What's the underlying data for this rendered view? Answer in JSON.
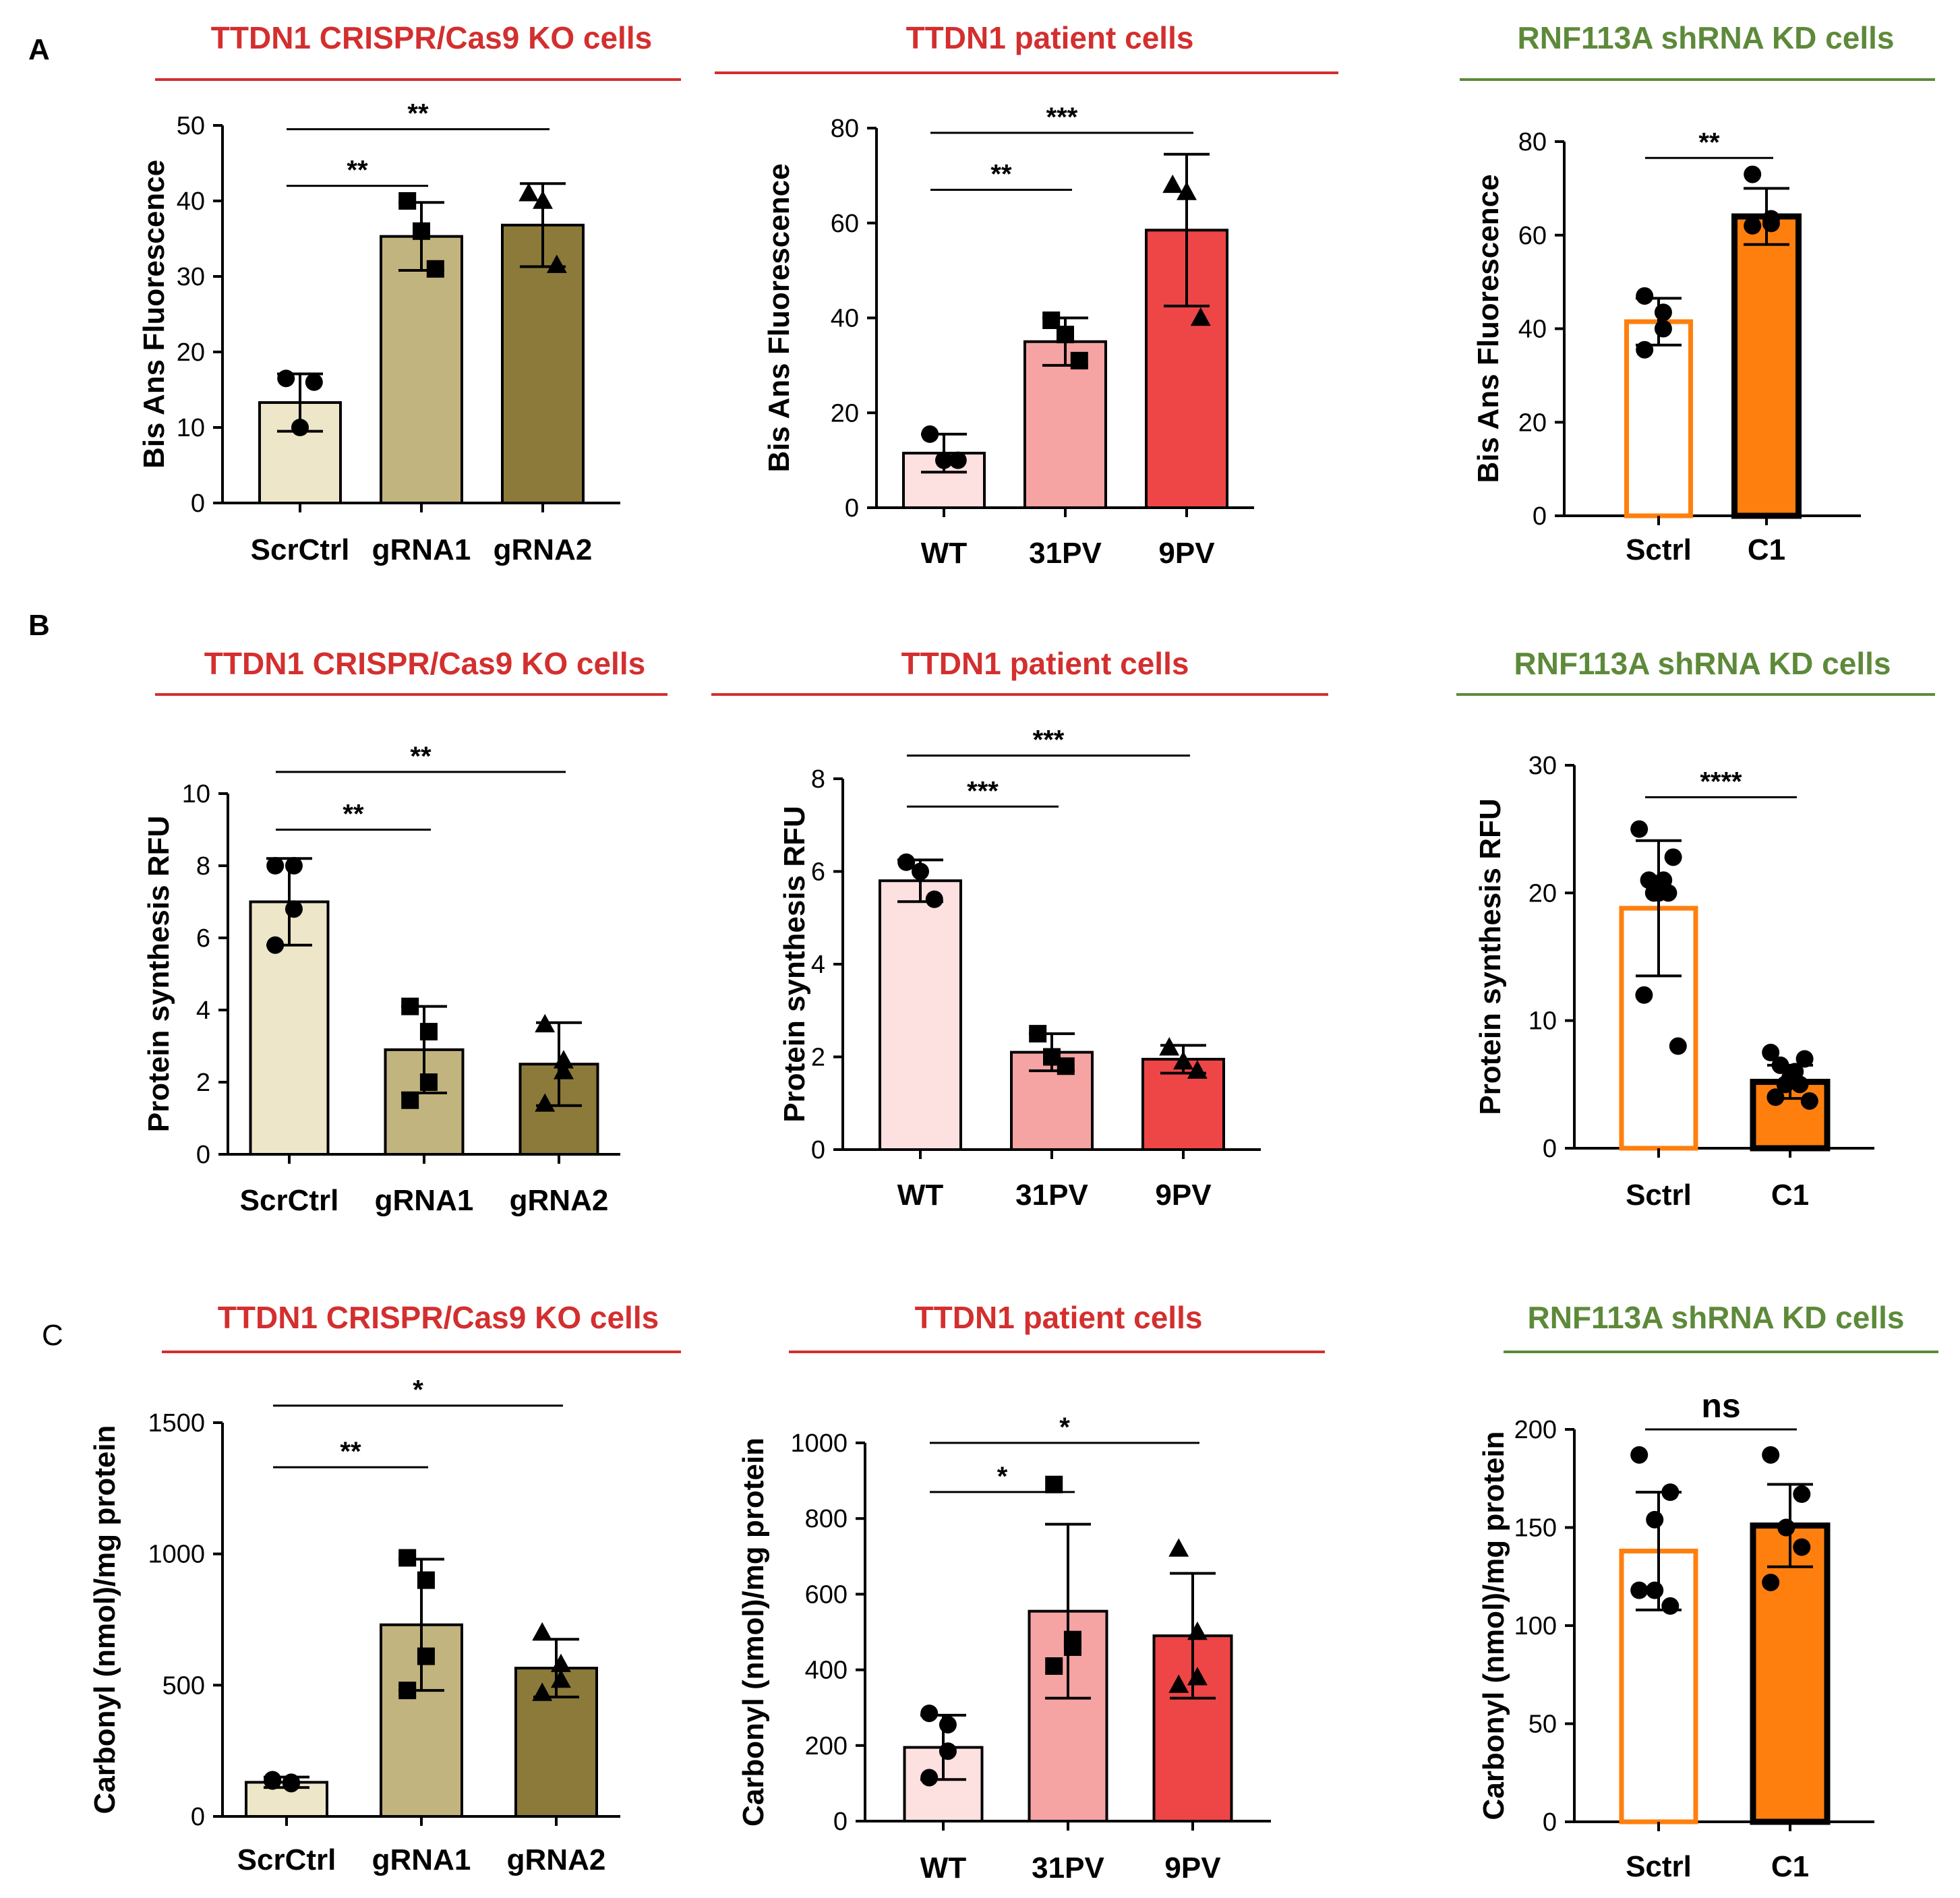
{
  "figure": {
    "panel_labels": [
      "A",
      "B",
      "C"
    ],
    "colors": {
      "title_red": "#d32f2f",
      "title_green": "#5d8a3a",
      "beige_light": "#ede6c8",
      "beige_mid": "#c2b47e",
      "olive": "#8b7a3a",
      "pink_light": "#fde0e0",
      "pink_mid": "#f6a3a3",
      "red": "#ee4646",
      "orange": "#ff7f0e",
      "black": "#000000",
      "white": "#ffffff"
    }
  },
  "chart_data": [
    {
      "id": "A1",
      "type": "bar",
      "panel": "A",
      "title": "TTDN1 CRISPR/Cas9 KO cells",
      "title_color": "red",
      "ylabel": "Bis Ans Fluorescence",
      "ylim": [
        0,
        50
      ],
      "yticks": [
        "0",
        "10",
        "20",
        "30",
        "40",
        "50"
      ],
      "categories": [
        "ScrCtrl",
        "gRNA1",
        "gRNA2"
      ],
      "values": [
        13.3,
        35.3,
        36.8
      ],
      "errors": [
        3.8,
        4.5,
        5.5
      ],
      "fills": [
        "beige_light",
        "beige_mid",
        "olive"
      ],
      "bar_stroke": "black",
      "markers": [
        "circle",
        "square",
        "triangle"
      ],
      "points": [
        [
          16.5,
          10,
          16
        ],
        [
          40,
          36,
          31
        ],
        [
          41,
          40,
          31.5
        ]
      ],
      "comparisons": [
        {
          "from": 0,
          "to": 1,
          "y": 42,
          "label": "**"
        },
        {
          "from": 0,
          "to": 2,
          "y": 49.5,
          "label": "**"
        }
      ]
    },
    {
      "id": "A2",
      "type": "bar",
      "panel": "A",
      "title": "TTDN1 patient cells",
      "title_color": "red",
      "ylabel": "Bis Ans Fluorescence",
      "ylim": [
        0,
        80
      ],
      "yticks": [
        "0",
        "20",
        "40",
        "60",
        "80"
      ],
      "categories": [
        "WT",
        "31PV",
        "9PV"
      ],
      "values": [
        11.5,
        35,
        58.5
      ],
      "errors": [
        4,
        5,
        16
      ],
      "fills": [
        "pink_light",
        "pink_mid",
        "red"
      ],
      "bar_stroke": "black",
      "markers": [
        "circle",
        "square",
        "triangle"
      ],
      "points": [
        [
          15.5,
          10,
          10
        ],
        [
          39.5,
          36.5,
          31
        ],
        [
          68,
          66.5,
          40
        ]
      ],
      "comparisons": [
        {
          "from": 0,
          "to": 1,
          "y": 67,
          "label": "**"
        },
        {
          "from": 0,
          "to": 2,
          "y": 79,
          "label": "***"
        }
      ]
    },
    {
      "id": "A3",
      "type": "bar",
      "panel": "A",
      "title": "RNF113A shRNA KD  cells",
      "title_color": "green",
      "ylabel": "Bis Ans Fluorescence",
      "ylim": [
        0,
        80
      ],
      "yticks": [
        "0",
        "20",
        "40",
        "60",
        "80"
      ],
      "categories": [
        "Sctrl",
        "C1"
      ],
      "values": [
        41.5,
        64
      ],
      "errors": [
        5,
        6
      ],
      "fills": [
        "white",
        "orange"
      ],
      "bar_stroke": "orange_black",
      "markers": [
        "circle",
        "circle"
      ],
      "points": [
        [
          47,
          43.5,
          40,
          35.5
        ],
        [
          73,
          63.5,
          62.5,
          62
        ]
      ],
      "comparisons": [
        {
          "from": 0,
          "to": 1,
          "y": 76.5,
          "label": "**"
        }
      ]
    },
    {
      "id": "B1",
      "type": "bar",
      "panel": "B",
      "title": "TTDN1 CRISPR/Cas9 KO cells",
      "title_color": "red",
      "ylabel": "Protein synthesis RFU",
      "ylim": [
        0,
        10
      ],
      "yticks": [
        "0",
        "2",
        "4",
        "6",
        "8",
        "10"
      ],
      "categories": [
        "ScrCtrl",
        "gRNA1",
        "gRNA2"
      ],
      "values": [
        7,
        2.9,
        2.5
      ],
      "errors": [
        1.2,
        1.2,
        1.15
      ],
      "fills": [
        "beige_light",
        "beige_mid",
        "olive"
      ],
      "bar_stroke": "black",
      "markers": [
        "circle",
        "square",
        "triangle"
      ],
      "points": [
        [
          8,
          8,
          6.8,
          5.8
        ],
        [
          4.1,
          3.4,
          2.0,
          1.5
        ],
        [
          3.6,
          2.6,
          2.3,
          1.4
        ]
      ],
      "comparisons": [
        {
          "from": 0,
          "to": 1,
          "y": 9,
          "label": "**"
        },
        {
          "from": 0,
          "to": 2,
          "y": 10.6,
          "label": "**"
        }
      ]
    },
    {
      "id": "B2",
      "type": "bar",
      "panel": "B",
      "title": "TTDN1 patient cells",
      "title_color": "red",
      "ylabel": "Protein synthesis RFU",
      "ylim": [
        0,
        8
      ],
      "yticks": [
        "0",
        "2",
        "4",
        "6",
        "8"
      ],
      "categories": [
        "WT",
        "31PV",
        "9PV"
      ],
      "values": [
        5.8,
        2.1,
        1.95
      ],
      "errors": [
        0.45,
        0.4,
        0.3
      ],
      "fills": [
        "pink_light",
        "pink_mid",
        "red"
      ],
      "bar_stroke": "black",
      "markers": [
        "circle",
        "square",
        "triangle"
      ],
      "points": [
        [
          6.2,
          6.0,
          5.4
        ],
        [
          2.5,
          2.0,
          1.8
        ],
        [
          2.2,
          1.9,
          1.7
        ]
      ],
      "comparisons": [
        {
          "from": 0,
          "to": 1,
          "y": 7.4,
          "label": "***"
        },
        {
          "from": 0,
          "to": 2,
          "y": 8.5,
          "label": "***"
        }
      ]
    },
    {
      "id": "B3",
      "type": "bar",
      "panel": "B",
      "title": "RNF113A shRNA KD  cells",
      "title_color": "green",
      "ylabel": "Protein synthesis RFU",
      "ylim": [
        0,
        30
      ],
      "yticks": [
        "0",
        "10",
        "20",
        "30"
      ],
      "categories": [
        "Sctrl",
        "C1"
      ],
      "values": [
        18.8,
        5.2
      ],
      "errors": [
        5.3,
        1.3
      ],
      "fills": [
        "white",
        "orange"
      ],
      "bar_stroke": "orange_black",
      "markers": [
        "circle",
        "circle"
      ],
      "points": [
        [
          25,
          22.8,
          21,
          21,
          20,
          20,
          20,
          12,
          8
        ],
        [
          7.5,
          7,
          6.5,
          6,
          5.5,
          5,
          5,
          4,
          3.7
        ]
      ],
      "comparisons": [
        {
          "from": 0,
          "to": 1,
          "y": 27.5,
          "label": "****"
        }
      ]
    },
    {
      "id": "C1",
      "type": "bar",
      "panel": "C",
      "title": "TTDN1 CRISPR/Cas9 KO cells",
      "title_color": "red",
      "ylabel": "Carbonyl (nmol)/mg protein",
      "ylim": [
        0,
        1500
      ],
      "yticks": [
        "0",
        "500",
        "1000",
        "1500"
      ],
      "categories": [
        "ScrCtrl",
        "gRNA1",
        "gRNA2"
      ],
      "values": [
        130,
        730,
        565
      ],
      "errors": [
        20,
        250,
        110
      ],
      "fills": [
        "beige_light",
        "beige_mid",
        "olive"
      ],
      "bar_stroke": "black",
      "markers": [
        "circle",
        "square",
        "triangle"
      ],
      "points": [
        [
          135,
          130,
          125,
          140
        ],
        [
          985,
          900,
          610,
          480
        ],
        [
          700,
          580,
          520,
          470
        ]
      ],
      "comparisons": [
        {
          "from": 0,
          "to": 1,
          "y": 1330,
          "label": "**"
        },
        {
          "from": 0,
          "to": 2,
          "y": 1565,
          "label": "*"
        }
      ]
    },
    {
      "id": "C2",
      "type": "bar",
      "panel": "C",
      "title": "TTDN1 patient cells",
      "title_color": "red",
      "ylabel": "Carbonyl (nmol)/mg protein",
      "ylim": [
        0,
        1000
      ],
      "yticks": [
        "0",
        "200",
        "400",
        "600",
        "800",
        "1000"
      ],
      "categories": [
        "WT",
        "31PV",
        "9PV"
      ],
      "values": [
        195,
        555,
        490
      ],
      "errors": [
        85,
        230,
        165
      ],
      "fills": [
        "pink_light",
        "pink_mid",
        "red"
      ],
      "bar_stroke": "black",
      "markers": [
        "circle",
        "square",
        "triangle"
      ],
      "points": [
        [
          285,
          255,
          185,
          115
        ],
        [
          890,
          480,
          460,
          410
        ],
        [
          720,
          500,
          380,
          360
        ]
      ],
      "comparisons": [
        {
          "from": 0,
          "to": 1,
          "y": 870,
          "label": "*"
        },
        {
          "from": 0,
          "to": 2,
          "y": 1000,
          "label": "*"
        }
      ]
    },
    {
      "id": "C3",
      "type": "bar",
      "panel": "C",
      "title": "RNF113A shRNA KD  cells",
      "title_color": "green",
      "ylabel": "Carbonyl (nmol)/mg protein",
      "ylim": [
        0,
        200
      ],
      "yticks": [
        "0",
        "50",
        "100",
        "150",
        "200"
      ],
      "categories": [
        "Sctrl",
        "C1"
      ],
      "values": [
        138,
        151
      ],
      "errors": [
        30,
        21
      ],
      "fills": [
        "white",
        "orange"
      ],
      "bar_stroke": "orange_black",
      "markers": [
        "circle",
        "circle"
      ],
      "points": [
        [
          187,
          168,
          154,
          118,
          110,
          118
        ],
        [
          187,
          167,
          150,
          150,
          140,
          122
        ]
      ],
      "comparisons": [
        {
          "from": 0,
          "to": 1,
          "y": 200,
          "label": "ns"
        }
      ]
    }
  ]
}
